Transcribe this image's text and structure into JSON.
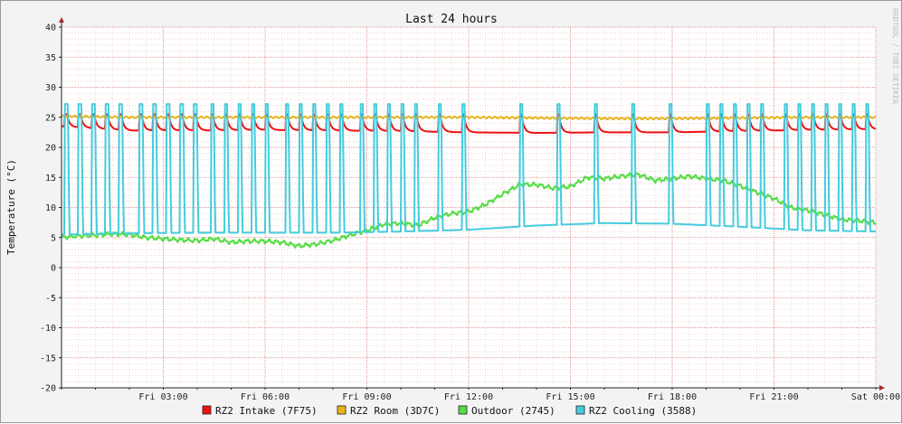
{
  "chart_data": {
    "type": "line",
    "title": "Last 24 hours",
    "ylabel": "Temperature (°C)",
    "xlabel": "",
    "watermark": "RRDTOOL / TOBI OETIKER",
    "ylim": [
      -20,
      40
    ],
    "y_ticks": [
      40,
      35,
      30,
      25,
      20,
      15,
      10,
      5,
      0,
      -5,
      -10,
      -15,
      -20
    ],
    "x_range_hours": [
      0,
      24
    ],
    "x_ticks": [
      {
        "hour": 3,
        "label": "Fri 03:00"
      },
      {
        "hour": 6,
        "label": "Fri 06:00"
      },
      {
        "hour": 9,
        "label": "Fri 09:00"
      },
      {
        "hour": 12,
        "label": "Fri 12:00"
      },
      {
        "hour": 15,
        "label": "Fri 15:00"
      },
      {
        "hour": 18,
        "label": "Fri 18:00"
      },
      {
        "hour": 21,
        "label": "Fri 21:00"
      },
      {
        "hour": 24,
        "label": "Sat 00:00"
      }
    ],
    "grid": true,
    "legend_position": "bottom",
    "series": [
      {
        "name": "RZ2 Intake (7F75)",
        "color": "#ee1111",
        "x": [
          0,
          2,
          4,
          6,
          8,
          10,
          12,
          14,
          16,
          18,
          20,
          22,
          24
        ],
        "y": [
          23.5,
          22.8,
          22.8,
          22.9,
          22.8,
          22.7,
          22.5,
          22.4,
          22.5,
          22.5,
          22.7,
          22.9,
          23.0
        ],
        "pulse_times": [
          0.1,
          0.5,
          0.9,
          1.3,
          1.7,
          2.3,
          2.7,
          3.1,
          3.5,
          3.9,
          4.4,
          4.8,
          5.2,
          5.6,
          6.0,
          6.6,
          7.0,
          7.4,
          7.8,
          8.2,
          8.8,
          9.2,
          9.6,
          10.0,
          10.4,
          11.1,
          11.8,
          13.5,
          14.6,
          15.7,
          16.8,
          17.9,
          19.0,
          19.4,
          19.8,
          20.2,
          20.6,
          21.3,
          21.7,
          22.1,
          22.5,
          22.9,
          23.3,
          23.7
        ],
        "pulse_peak": 25.5
      },
      {
        "name": "RZ2 Room (3D7C)",
        "color": "#e8b51c",
        "x": [
          0,
          2,
          4,
          6,
          8,
          10,
          12,
          14,
          16,
          18,
          20,
          22,
          24
        ],
        "y": [
          25.2,
          25.0,
          25.0,
          25.0,
          25.0,
          25.0,
          25.0,
          24.9,
          24.8,
          24.8,
          24.9,
          25.0,
          25.0
        ]
      },
      {
        "name": "Outdoor (2745)",
        "color": "#55dd44",
        "x": [
          0,
          0.5,
          1,
          1.5,
          2,
          2.5,
          3,
          3.5,
          4,
          4.5,
          5,
          5.5,
          6,
          6.5,
          7,
          7.5,
          8,
          8.5,
          9,
          9.5,
          10,
          10.5,
          11,
          11.5,
          12,
          12.5,
          13,
          13.5,
          14,
          14.5,
          15,
          15.5,
          16,
          16.5,
          17,
          17.5,
          18,
          18.5,
          19,
          19.5,
          20,
          20.5,
          21,
          21.5,
          22,
          22.5,
          23,
          23.5,
          24
        ],
        "y": [
          5.0,
          5.3,
          5.4,
          5.6,
          5.5,
          5.0,
          4.8,
          4.6,
          4.5,
          4.8,
          4.2,
          4.4,
          4.4,
          4.2,
          3.6,
          3.9,
          4.5,
          5.4,
          6.2,
          7.2,
          7.4,
          7.0,
          8.3,
          9.0,
          9.3,
          10.5,
          12.2,
          13.8,
          13.8,
          13.2,
          13.5,
          15.0,
          14.8,
          15.2,
          15.5,
          14.5,
          14.8,
          15.2,
          14.8,
          14.5,
          13.6,
          12.5,
          11.5,
          10.0,
          9.5,
          8.8,
          8.0,
          7.8,
          7.5
        ]
      },
      {
        "name": "RZ2 Cooling (3588)",
        "color": "#44ccdd",
        "x": [
          0,
          2,
          4,
          6,
          8,
          10,
          12,
          14,
          16,
          18,
          20,
          22,
          24
        ],
        "y": [
          5.5,
          5.7,
          5.8,
          5.8,
          5.8,
          6.0,
          6.3,
          7.0,
          7.4,
          7.3,
          6.8,
          6.2,
          6.0
        ],
        "pulse_times": [
          0.1,
          0.5,
          0.9,
          1.3,
          1.7,
          2.3,
          2.7,
          3.1,
          3.5,
          3.9,
          4.4,
          4.8,
          5.2,
          5.6,
          6.0,
          6.6,
          7.0,
          7.4,
          7.8,
          8.2,
          8.8,
          9.2,
          9.6,
          10.0,
          10.4,
          11.1,
          11.8,
          13.5,
          14.6,
          15.7,
          16.8,
          17.9,
          19.0,
          19.4,
          19.8,
          20.2,
          20.6,
          21.3,
          21.7,
          22.1,
          22.5,
          22.9,
          23.3,
          23.7
        ],
        "pulse_peak": 27.2
      }
    ]
  }
}
